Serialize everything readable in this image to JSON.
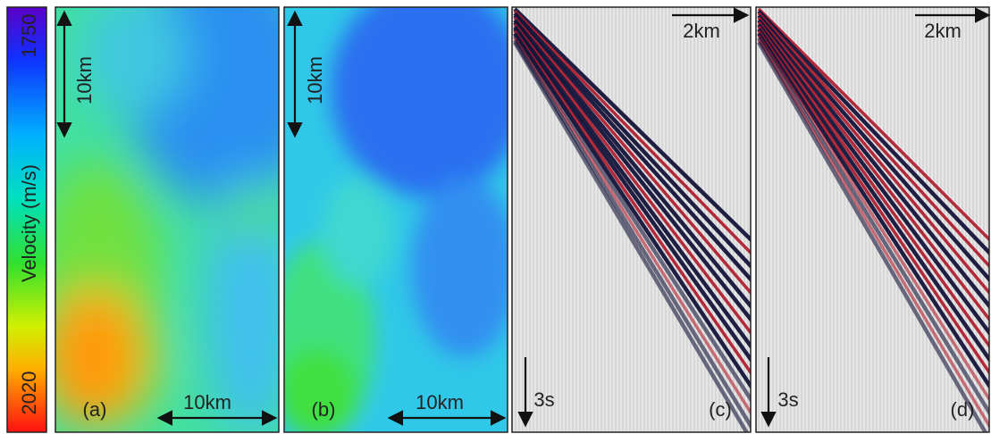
{
  "colorbar": {
    "label": "Velocity (m/s)",
    "top_label": "1750",
    "bottom_label": "2020"
  },
  "panels": [
    {
      "label": "(a)",
      "vertical_scale": "10km",
      "horizontal_scale": "10km"
    },
    {
      "label": "(b)",
      "vertical_scale": "10km",
      "horizontal_scale": "10km"
    },
    {
      "label": "(c)",
      "horizontal_scale": "2km",
      "time_scale": "3s"
    },
    {
      "label": "(d)",
      "horizontal_scale": "2km",
      "time_scale": "3s"
    }
  ]
}
